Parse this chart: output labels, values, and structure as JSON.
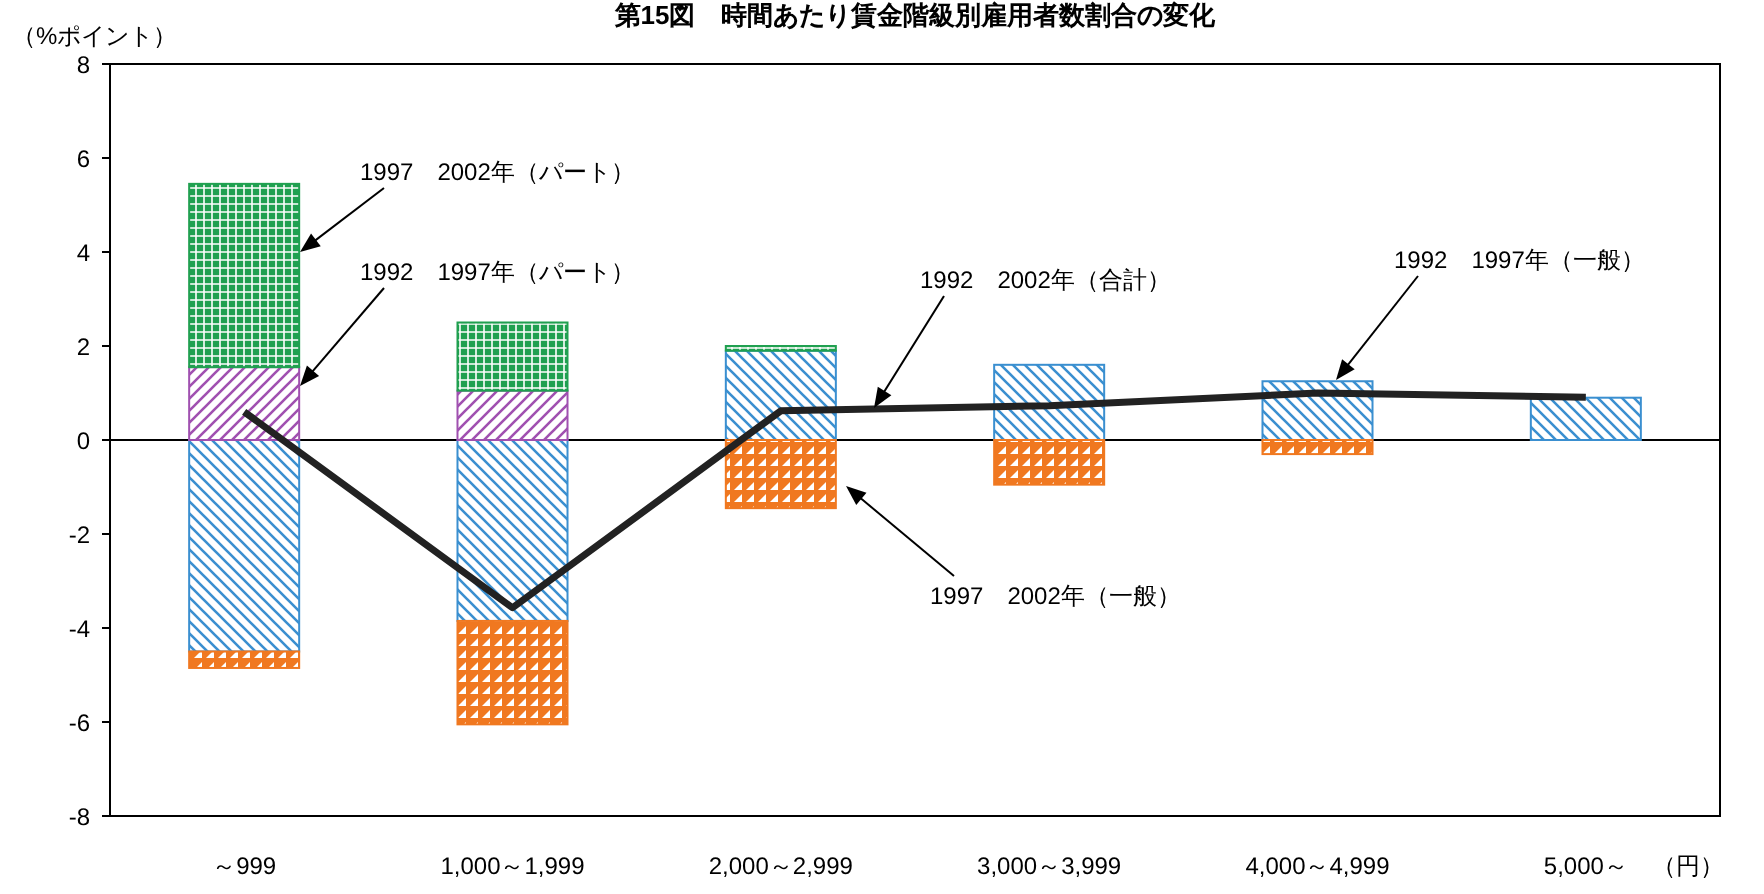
{
  "chart_data": {
    "type": "bar",
    "stacked": true,
    "title": "第15図　時間あたり賃金階級別雇用者数割合の変化",
    "ylabel": "（%ポイント）",
    "xlabel": "（円）",
    "categories": [
      "～999",
      "1,000～1,999",
      "2,000～2,999",
      "3,000～3,999",
      "4,000～4,999",
      "5,000～"
    ],
    "series": [
      {
        "color": "#3a8fd0",
        "values": [
          -4.5,
          -3.85,
          1.9,
          1.6,
          1.25,
          0.9
        ]
      },
      {
        "color": "#f07820",
        "values": [
          -0.35,
          -2.2,
          -1.45,
          -0.95,
          -0.3,
          null
        ]
      },
      {
        "color": "#a050b0",
        "values": [
          1.55,
          1.05,
          null,
          null,
          null,
          null
        ]
      },
      {
        "color": "#20a050",
        "values": [
          3.9,
          1.45,
          0.1,
          null,
          null,
          null
        ]
      },
      {
        "type": "line",
        "color": "#222222",
        "values": [
          0.6,
          -3.57,
          0.62,
          0.73,
          1.0,
          0.91
        ]
      }
    ],
    "ylim": [
      -8,
      8
    ],
    "yticks": [
      -8,
      -6,
      -4,
      -2,
      0,
      2,
      4,
      6,
      8
    ],
    "annotations": [
      "1997　2002年（パート）",
      "1992　1997年（パート）",
      "1992　2002年（合計）",
      "1992　1997年（一般）",
      "1997　2002年（一般）"
    ]
  }
}
